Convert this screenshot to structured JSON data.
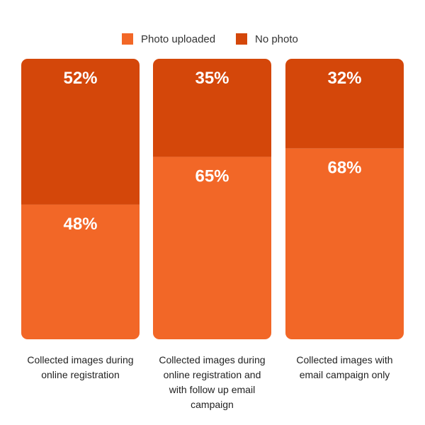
{
  "chart_data": {
    "type": "bar",
    "stacked": true,
    "percent_stacked": true,
    "categories": [
      [
        "Collected images during",
        "online registration"
      ],
      [
        "Collected images during",
        "online registration and",
        "with follow up email",
        "campaign"
      ],
      [
        "Collected images with",
        "email campaign only"
      ]
    ],
    "series": [
      {
        "name": "Photo uploaded",
        "values": [
          48,
          65,
          68
        ],
        "labels": [
          "48%",
          "65%",
          "68%"
        ],
        "color": "#f26727"
      },
      {
        "name": "No photo",
        "values": [
          52,
          35,
          32
        ],
        "labels": [
          "52%",
          "35%",
          "32%"
        ],
        "color": "#d4470a"
      }
    ],
    "ylim": [
      0,
      100
    ],
    "grid": false,
    "legend_position": "top-center"
  }
}
